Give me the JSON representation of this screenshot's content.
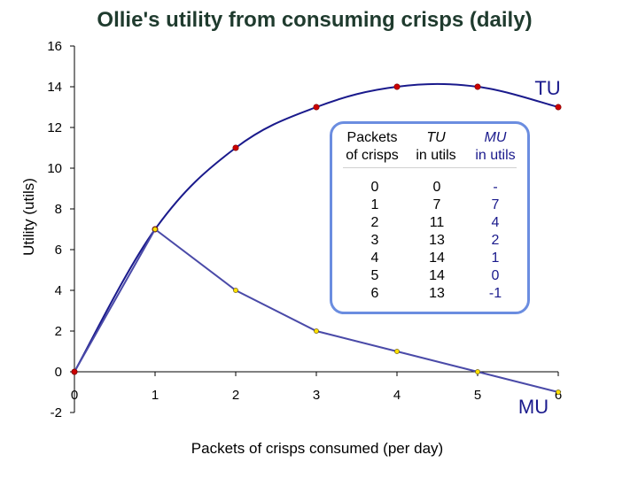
{
  "chart_data": {
    "type": "line",
    "title": "Ollie's utility from consuming crisps (daily)",
    "xlabel": "Packets of crisps consumed (per day)",
    "ylabel": "Utility (utils)",
    "xlim": [
      0,
      6
    ],
    "ylim": [
      -2,
      16
    ],
    "x_ticks": [
      "0",
      "1",
      "2",
      "3",
      "4",
      "5",
      "6"
    ],
    "y_ticks": [
      "-2",
      "0",
      "2",
      "4",
      "6",
      "8",
      "10",
      "12",
      "14",
      "16"
    ],
    "grid": false,
    "series": [
      {
        "name": "TU",
        "x": [
          0,
          1,
          2,
          3,
          4,
          5,
          6
        ],
        "values": [
          0,
          7,
          11,
          13,
          14,
          14,
          13
        ],
        "line_color": "#1a1a8c",
        "marker_color": "#cc0000"
      },
      {
        "name": "MU",
        "x": [
          0,
          1,
          2,
          3,
          4,
          5,
          6
        ],
        "values": [
          0,
          7,
          4,
          2,
          1,
          0,
          -1
        ],
        "line_color": "#4a4aa8",
        "marker_color": "#ffe000"
      }
    ]
  },
  "table": {
    "headers": {
      "packets": [
        "Packets",
        "of crisps"
      ],
      "tu": [
        "TU",
        "in utils"
      ],
      "mu": [
        "MU",
        "in utils"
      ]
    },
    "packets": [
      "0",
      "1",
      "2",
      "3",
      "4",
      "5",
      "6"
    ],
    "tu": [
      "0",
      "7",
      "11",
      "13",
      "14",
      "14",
      "13"
    ],
    "mu": [
      "-",
      "7",
      "4",
      "2",
      "1",
      "0",
      "-1"
    ]
  },
  "colors": {
    "title": "#1f3b2e",
    "axis": "#000000",
    "table_border": "#6b8de0",
    "label_blue": "#1a1a8c"
  }
}
